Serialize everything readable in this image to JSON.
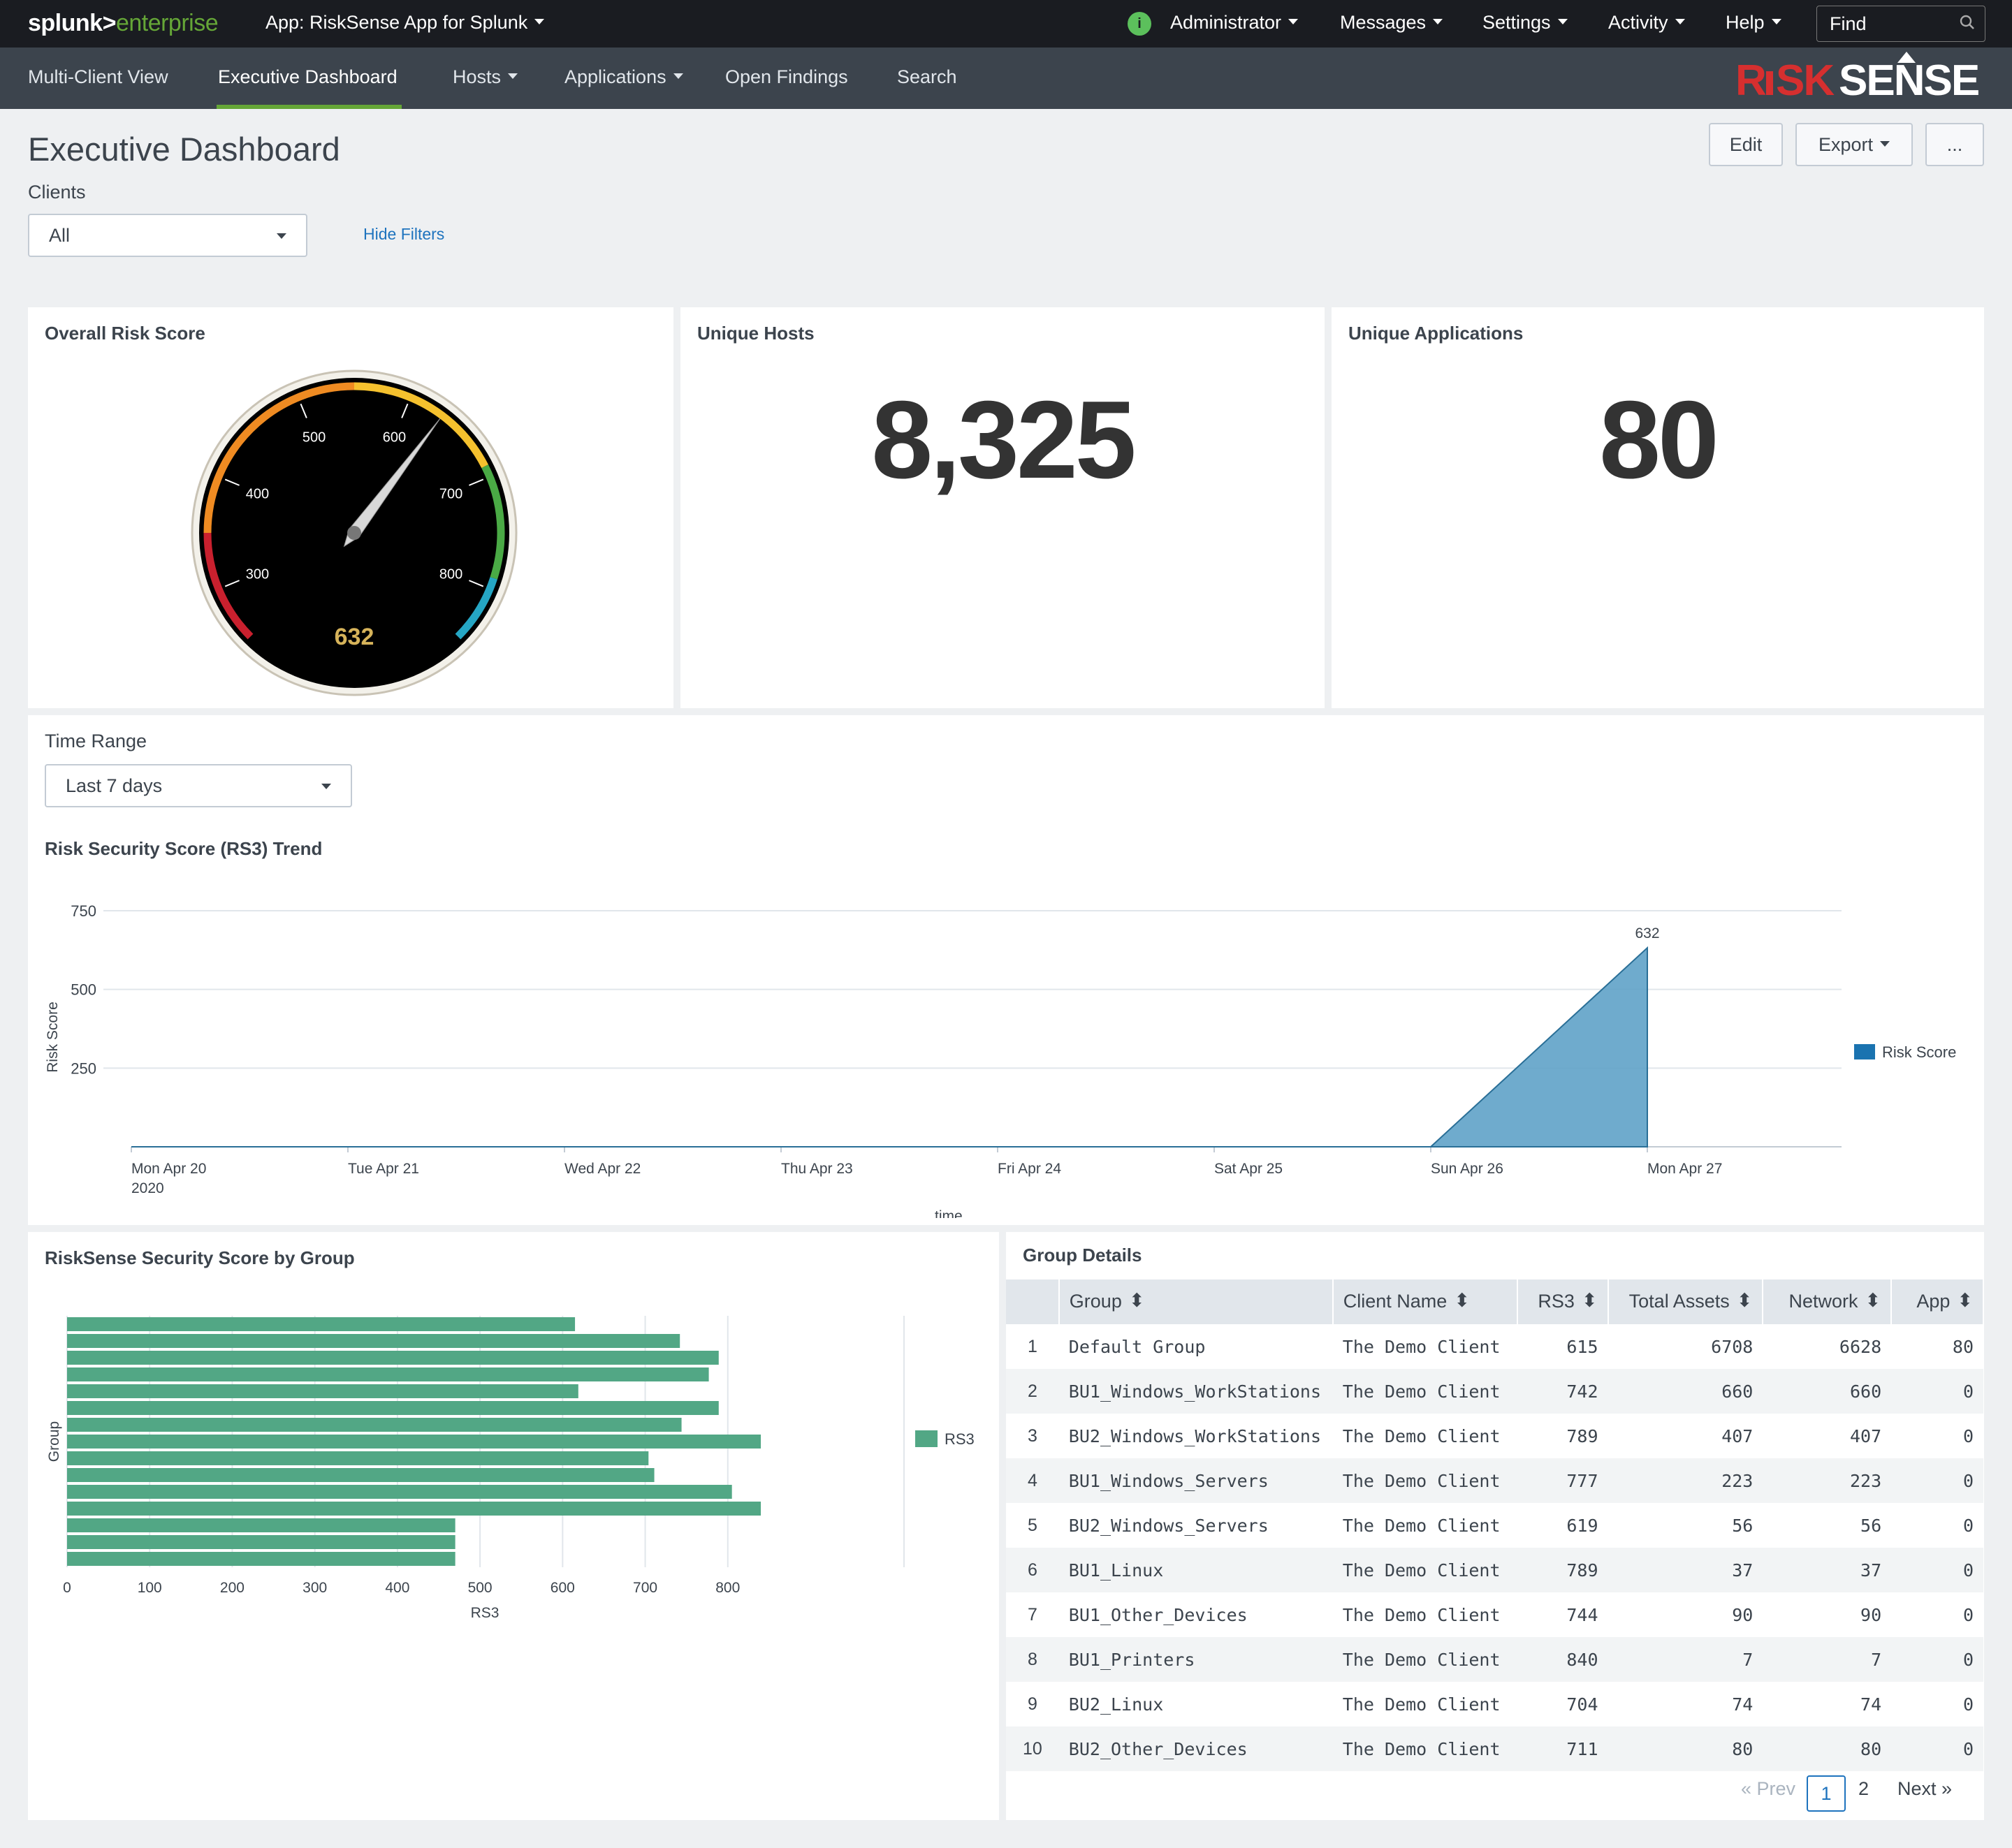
{
  "topbar": {
    "logo_splunk": "splunk>",
    "logo_enterprise": "enterprise",
    "app_label": "App: RiskSense App for Splunk",
    "info_icon": "i",
    "user": "Administrator",
    "messages": "Messages",
    "settings": "Settings",
    "activity": "Activity",
    "help": "Help",
    "find_placeholder": "Find"
  },
  "nav": {
    "items": [
      "Multi-Client View",
      "Executive Dashboard",
      "Hosts",
      "Applications",
      "Open Findings",
      "Search"
    ],
    "active": "Executive Dashboard",
    "brand": "RISKSENSE",
    "accent": "#65a637"
  },
  "page": {
    "title": "Executive Dashboard",
    "edit": "Edit",
    "export": "Export",
    "more": "...",
    "clients_label": "Clients",
    "clients_value": "All",
    "hide_filters": "Hide Filters"
  },
  "panels": {
    "risk_title": "Overall Risk Score",
    "risk_value": 632,
    "risk_display": "632",
    "gauge_ticks": [
      "300",
      "400",
      "500",
      "600",
      "700",
      "800"
    ],
    "gauge_range": [
      250,
      850
    ],
    "hosts_title": "Unique Hosts",
    "hosts_value": "8,325",
    "apps_title": "Unique Applications",
    "apps_value": "80"
  },
  "trend": {
    "time_label": "Time Range",
    "time_value": "Last 7 days",
    "title": "Risk Security Score (RS3) Trend",
    "legend": "Risk Score",
    "color": "#5fa2c8"
  },
  "group_chart_title": "RiskSense Security Score by Group",
  "group_chart_legend": "RS3",
  "group_chart_color": "#52a785",
  "chart_data": [
    {
      "type": "area",
      "title": "Risk Security Score (RS3) Trend",
      "xlabel": "_time",
      "ylabel": "Risk Score",
      "x": [
        "Mon Apr 20\n2020",
        "Tue Apr 21",
        "Wed Apr 22",
        "Thu Apr 23",
        "Fri Apr 24",
        "Sat Apr 25",
        "Sun Apr 26",
        "Mon Apr 27"
      ],
      "series": [
        {
          "name": "Risk Score",
          "values": [
            0,
            0,
            0,
            0,
            0,
            0,
            0,
            632
          ]
        }
      ],
      "yticks": [
        "250",
        "500",
        "750"
      ],
      "ylim": [
        0,
        750
      ],
      "data_label": "632",
      "legend": "right",
      "grid": true
    },
    {
      "type": "bar",
      "orientation": "horizontal",
      "title": "RiskSense Security Score by Group",
      "xlabel": "RS3",
      "ylabel": "Group",
      "series": [
        {
          "name": "RS3",
          "values": [
            615,
            742,
            789,
            777,
            619,
            789,
            744,
            840,
            704,
            711,
            805,
            840,
            470,
            470,
            470
          ]
        }
      ],
      "xticks": [
        "0",
        "100",
        "200",
        "300",
        "400",
        "500",
        "600",
        "700",
        "800"
      ],
      "xlim": [
        0,
        900
      ],
      "legend": "right",
      "grid": true
    }
  ],
  "group_table": {
    "title": "Group Details",
    "columns": [
      "Group",
      "Client Name",
      "RS3",
      "Total Assets",
      "Network",
      "App"
    ],
    "rows": [
      [
        "1",
        "Default Group",
        "The Demo Client",
        "615",
        "6708",
        "6628",
        "80"
      ],
      [
        "2",
        "BU1_Windows_WorkStations",
        "The Demo Client",
        "742",
        "660",
        "660",
        "0"
      ],
      [
        "3",
        "BU2_Windows_WorkStations",
        "The Demo Client",
        "789",
        "407",
        "407",
        "0"
      ],
      [
        "4",
        "BU1_Windows_Servers",
        "The Demo Client",
        "777",
        "223",
        "223",
        "0"
      ],
      [
        "5",
        "BU2_Windows_Servers",
        "The Demo Client",
        "619",
        "56",
        "56",
        "0"
      ],
      [
        "6",
        "BU1_Linux",
        "The Demo Client",
        "789",
        "37",
        "37",
        "0"
      ],
      [
        "7",
        "BU1_Other_Devices",
        "The Demo Client",
        "744",
        "90",
        "90",
        "0"
      ],
      [
        "8",
        "BU1_Printers",
        "The Demo Client",
        "840",
        "7",
        "7",
        "0"
      ],
      [
        "9",
        "BU2_Linux",
        "The Demo Client",
        "704",
        "74",
        "74",
        "0"
      ],
      [
        "10",
        "BU2_Other_Devices",
        "The Demo Client",
        "711",
        "80",
        "80",
        "0"
      ]
    ],
    "pager": {
      "prev": "« Prev",
      "pages": [
        "1",
        "2"
      ],
      "current": "1",
      "next": "Next »"
    }
  }
}
